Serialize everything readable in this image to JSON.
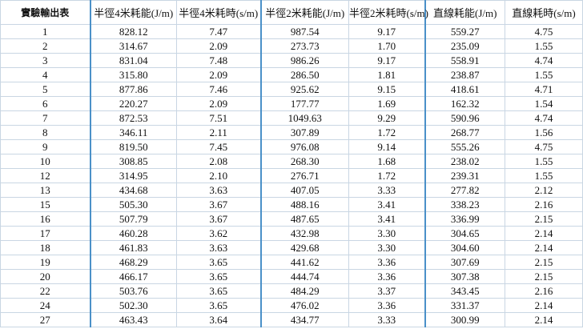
{
  "table": {
    "header": [
      "實驗輸出表",
      "半徑4米耗能(J/m)",
      "半徑4米耗時(s/m)",
      "半徑2米耗能(J/m)",
      "半徑2米耗時(s/m)",
      "直線耗能(J/m)",
      "直線耗時(s/m)"
    ],
    "rows": [
      [
        "1",
        "828.12",
        "7.47",
        "987.54",
        "9.17",
        "559.27",
        "4.75"
      ],
      [
        "2",
        "314.67",
        "2.09",
        "273.73",
        "1.70",
        "235.09",
        "1.55"
      ],
      [
        "3",
        "831.04",
        "7.48",
        "986.26",
        "9.17",
        "558.91",
        "4.74"
      ],
      [
        "4",
        "315.80",
        "2.09",
        "286.50",
        "1.81",
        "238.87",
        "1.55"
      ],
      [
        "5",
        "877.86",
        "7.46",
        "925.62",
        "9.15",
        "418.61",
        "4.71"
      ],
      [
        "6",
        "220.27",
        "2.09",
        "177.77",
        "1.69",
        "162.32",
        "1.54"
      ],
      [
        "7",
        "872.53",
        "7.51",
        "1049.63",
        "9.29",
        "590.96",
        "4.74"
      ],
      [
        "8",
        "346.11",
        "2.11",
        "307.89",
        "1.72",
        "268.77",
        "1.56"
      ],
      [
        "9",
        "819.50",
        "7.45",
        "976.08",
        "9.14",
        "555.26",
        "4.75"
      ],
      [
        "10",
        "308.85",
        "2.08",
        "268.30",
        "1.68",
        "238.02",
        "1.55"
      ],
      [
        "12",
        "314.95",
        "2.10",
        "276.71",
        "1.72",
        "239.31",
        "1.55"
      ],
      [
        "13",
        "434.68",
        "3.63",
        "407.05",
        "3.33",
        "277.82",
        "2.12"
      ],
      [
        "15",
        "505.30",
        "3.67",
        "488.16",
        "3.41",
        "338.23",
        "2.16"
      ],
      [
        "16",
        "507.79",
        "3.67",
        "487.65",
        "3.41",
        "336.99",
        "2.15"
      ],
      [
        "17",
        "460.28",
        "3.62",
        "432.98",
        "3.30",
        "304.65",
        "2.14"
      ],
      [
        "18",
        "461.83",
        "3.63",
        "429.68",
        "3.30",
        "304.60",
        "2.14"
      ],
      [
        "19",
        "468.29",
        "3.65",
        "441.62",
        "3.36",
        "307.69",
        "2.15"
      ],
      [
        "20",
        "466.17",
        "3.65",
        "444.74",
        "3.36",
        "307.38",
        "2.15"
      ],
      [
        "22",
        "503.76",
        "3.65",
        "484.29",
        "3.37",
        "343.45",
        "2.16"
      ],
      [
        "24",
        "502.30",
        "3.65",
        "476.02",
        "3.36",
        "331.37",
        "2.14"
      ],
      [
        "27",
        "463.43",
        "3.64",
        "434.77",
        "3.33",
        "300.99",
        "2.14"
      ]
    ]
  }
}
